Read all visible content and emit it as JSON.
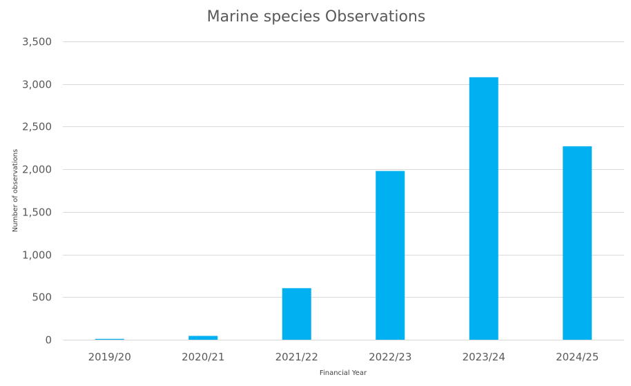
{
  "chart_data": {
    "type": "bar",
    "title": "Marine species Observations",
    "xlabel": "Financial Year",
    "ylabel": "Number of observations",
    "categories": [
      "2019/20",
      "2020/21",
      "2021/22",
      "2022/23",
      "2023/24",
      "2024/25"
    ],
    "values": [
      10,
      45,
      605,
      1980,
      3080,
      2270
    ],
    "ylim": [
      0,
      3500
    ],
    "yticks": [
      0,
      500,
      1000,
      1500,
      2000,
      2500,
      3000,
      3500
    ],
    "ytick_labels": [
      "0",
      "500",
      "1,000",
      "1,500",
      "2,000",
      "2,500",
      "3,000",
      "3,500"
    ],
    "grid": true,
    "legend": "none",
    "bar_color": "#00b0f0"
  }
}
